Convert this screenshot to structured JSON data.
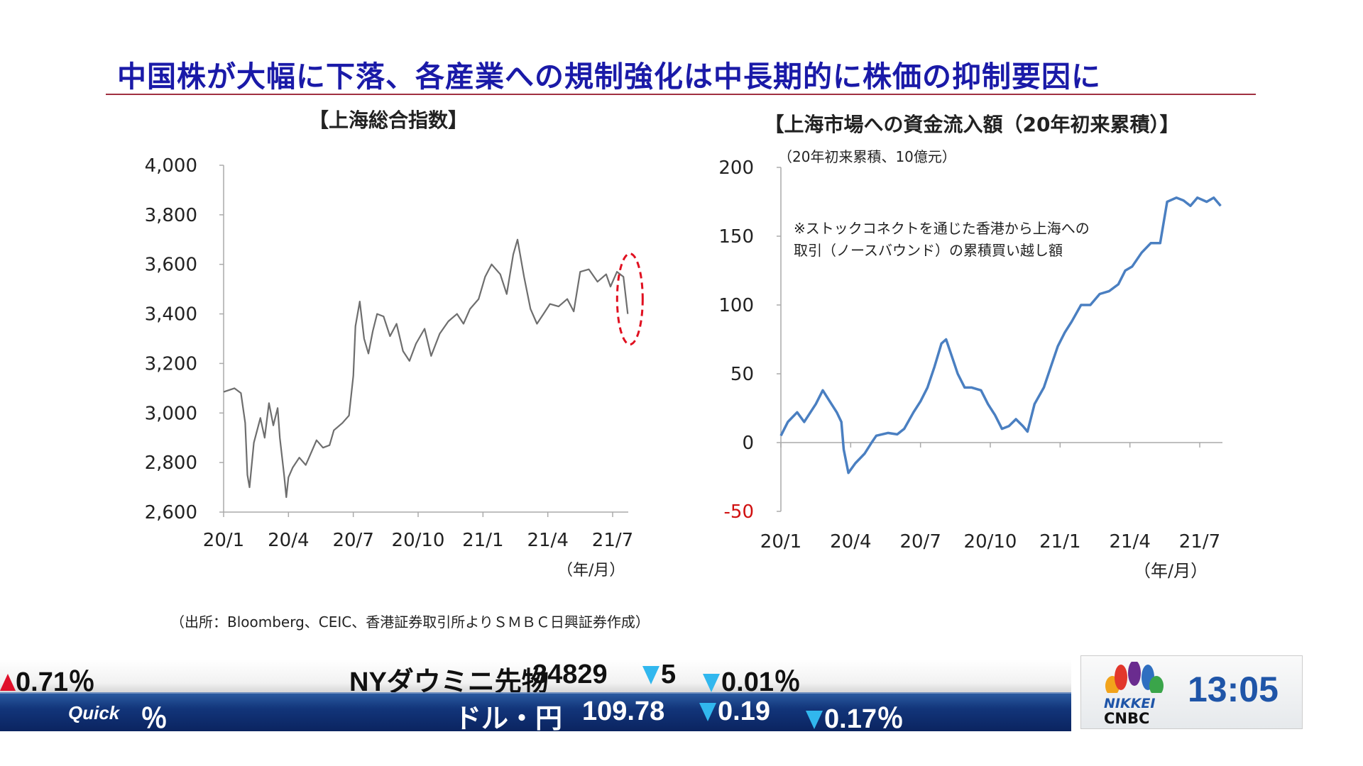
{
  "title": "中国株が大幅に下落、各産業への規制強化は中長期的に株価の抑制要因に",
  "source": "（出所：Bloomberg、CEIC、香港証券取引所よりＳＭＢＣ日興証券作成）",
  "chart_data": [
    {
      "type": "line",
      "title": "【上海総合指数】",
      "xlabel": "（年/月）",
      "ylabel": "",
      "x_unit": "months since 2020/1",
      "xticks": [
        "20/1",
        "20/4",
        "20/7",
        "20/10",
        "21/1",
        "21/4",
        "21/7"
      ],
      "yticks": [
        "4,000",
        "3,800",
        "3,600",
        "3,400",
        "3,200",
        "3,000",
        "2,800",
        "2,600"
      ],
      "ylim": [
        2600,
        4000
      ],
      "xlim": [
        0,
        18
      ],
      "color": "#6e6e6e",
      "annotation": "red dashed ellipse highlighting latest drop",
      "x": [
        0,
        0.5,
        0.8,
        1.0,
        1.1,
        1.2,
        1.4,
        1.7,
        1.9,
        2.1,
        2.3,
        2.5,
        2.6,
        2.8,
        2.9,
        3.0,
        3.2,
        3.5,
        3.8,
        4.0,
        4.3,
        4.6,
        4.9,
        5.1,
        5.5,
        5.8,
        6.0,
        6.1,
        6.3,
        6.5,
        6.7,
        6.9,
        7.1,
        7.4,
        7.7,
        8.0,
        8.3,
        8.6,
        8.9,
        9.3,
        9.6,
        10.0,
        10.4,
        10.8,
        11.1,
        11.4,
        11.8,
        12.1,
        12.4,
        12.8,
        13.1,
        13.4,
        13.6,
        13.9,
        14.2,
        14.5,
        14.8,
        15.1,
        15.5,
        15.9,
        16.2,
        16.5,
        16.9,
        17.3,
        17.7,
        17.9,
        18.2,
        18.5,
        18.7
      ],
      "y": [
        3085,
        3100,
        3080,
        2960,
        2750,
        2700,
        2880,
        2980,
        2900,
        3040,
        2950,
        3020,
        2900,
        2750,
        2660,
        2740,
        2780,
        2820,
        2790,
        2830,
        2890,
        2860,
        2870,
        2930,
        2960,
        2990,
        3150,
        3350,
        3450,
        3300,
        3240,
        3330,
        3400,
        3390,
        3310,
        3360,
        3250,
        3210,
        3280,
        3340,
        3230,
        3320,
        3370,
        3400,
        3360,
        3420,
        3460,
        3550,
        3600,
        3560,
        3480,
        3640,
        3700,
        3550,
        3420,
        3360,
        3400,
        3440,
        3430,
        3460,
        3410,
        3570,
        3580,
        3530,
        3560,
        3510,
        3570,
        3550,
        3400
      ]
    },
    {
      "type": "line",
      "title": "【上海市場への資金流入額（20年初来累積）】",
      "subtitle": "（20年初来累積、10億元）",
      "annotation_lines": [
        "※ストックコネクトを通じた香港から上海への",
        "取引（ノースバウンド）の累積買い越し額"
      ],
      "xlabel": "（年/月）",
      "x_unit": "months since 2020/1",
      "xticks": [
        "20/1",
        "20/4",
        "20/7",
        "20/10",
        "21/1",
        "21/4",
        "21/7"
      ],
      "yticks": [
        "200",
        "150",
        "100",
        "50",
        "0",
        "-50"
      ],
      "ylim": [
        -50,
        200
      ],
      "xlim": [
        0,
        18
      ],
      "color": "#4a7fc1",
      "x": [
        0,
        0.3,
        0.7,
        1.0,
        1.5,
        1.8,
        2.1,
        2.4,
        2.6,
        2.7,
        2.9,
        3.2,
        3.6,
        3.9,
        4.1,
        4.6,
        5.0,
        5.3,
        5.7,
        6.0,
        6.3,
        6.6,
        6.9,
        7.1,
        7.3,
        7.6,
        7.9,
        8.2,
        8.6,
        8.9,
        9.2,
        9.5,
        9.8,
        10.1,
        10.4,
        10.6,
        10.9,
        11.3,
        11.6,
        11.9,
        12.2,
        12.5,
        12.9,
        13.3,
        13.7,
        14.1,
        14.5,
        14.8,
        15.1,
        15.5,
        15.9,
        16.3,
        16.6,
        17.0,
        17.3,
        17.6,
        17.9,
        18.3,
        18.6,
        18.9
      ],
      "y": [
        5,
        15,
        22,
        15,
        28,
        38,
        30,
        22,
        15,
        -5,
        -22,
        -15,
        -8,
        0,
        5,
        7,
        6,
        10,
        22,
        30,
        40,
        55,
        72,
        75,
        65,
        50,
        40,
        40,
        38,
        28,
        20,
        10,
        12,
        17,
        12,
        8,
        28,
        40,
        55,
        70,
        80,
        88,
        100,
        100,
        108,
        110,
        115,
        125,
        128,
        138,
        145,
        145,
        175,
        178,
        176,
        172,
        178,
        175,
        178,
        172
      ]
    }
  ],
  "ticker": {
    "top_left": "0.71％",
    "top_name": "NYダウミニ先物",
    "top_value": "34829",
    "top_change": "5",
    "top_pct": "0.01％",
    "bot_brand": "Quick",
    "bot_pct_label": "％",
    "bot_name": "ドル・円",
    "bot_value": "109.78",
    "bot_change": "0.19",
    "bot_pct": "0.17％"
  },
  "logo": {
    "line1": "NIKKEI",
    "line2": "CNBC"
  },
  "clock": "13:05"
}
